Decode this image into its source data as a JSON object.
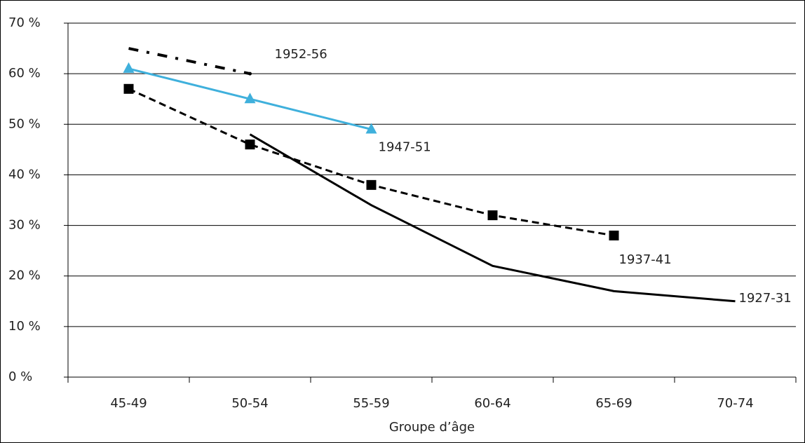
{
  "chart_data": {
    "type": "line",
    "x_label": "Groupe d’âge",
    "categories": [
      "45-49",
      "50-54",
      "55-59",
      "60-64",
      "65-69",
      "70-74"
    ],
    "series": [
      {
        "name": "1952-56",
        "color": "#000000",
        "style": "dashdot",
        "marker": "none",
        "values": [
          65,
          60,
          null,
          null,
          null,
          null
        ]
      },
      {
        "name": "1947-51",
        "color": "#3fb0dc",
        "style": "solid",
        "marker": "triangle",
        "values": [
          61,
          55,
          49,
          null,
          null,
          null
        ]
      },
      {
        "name": "1937-41",
        "color": "#000000",
        "style": "dashed",
        "marker": "square",
        "values": [
          57,
          46,
          38,
          32,
          28,
          null
        ]
      },
      {
        "name": "1927-31",
        "color": "#000000",
        "style": "solid",
        "marker": "none",
        "values": [
          null,
          48,
          34,
          22,
          17,
          15
        ]
      }
    ],
    "ylim": [
      0,
      70
    ],
    "yticks": [
      {
        "value": 0,
        "label": "0 %"
      },
      {
        "value": 10,
        "label": "10 %"
      },
      {
        "value": 20,
        "label": "20 %"
      },
      {
        "value": 30,
        "label": "30 %"
      },
      {
        "value": 40,
        "label": "40 %"
      },
      {
        "value": 50,
        "label": "50 %"
      },
      {
        "value": 60,
        "label": "60 %"
      },
      {
        "value": 70,
        "label": "70 %"
      }
    ],
    "grid": true
  }
}
